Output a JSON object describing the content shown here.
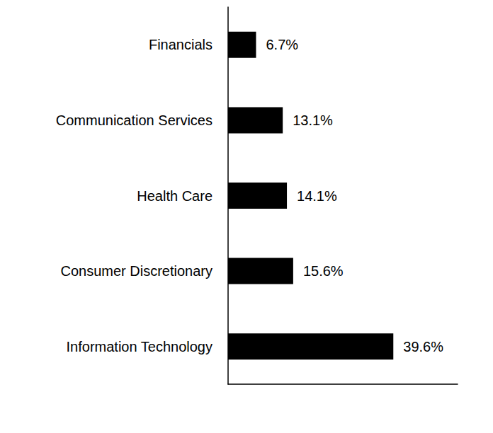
{
  "chart_data": {
    "type": "bar",
    "orientation": "horizontal",
    "categories": [
      "Financials",
      "Communication Services",
      "Health Care",
      "Consumer Discretionary",
      "Information Technology"
    ],
    "values": [
      6.7,
      13.1,
      14.1,
      15.6,
      39.6
    ],
    "value_labels": [
      "6.7%",
      "13.1%",
      "14.1%",
      "15.6%",
      "39.6%"
    ],
    "color": "#000000",
    "xlim": [
      0,
      55
    ],
    "grid": false,
    "data_labels": true,
    "tick_labels": "y"
  }
}
